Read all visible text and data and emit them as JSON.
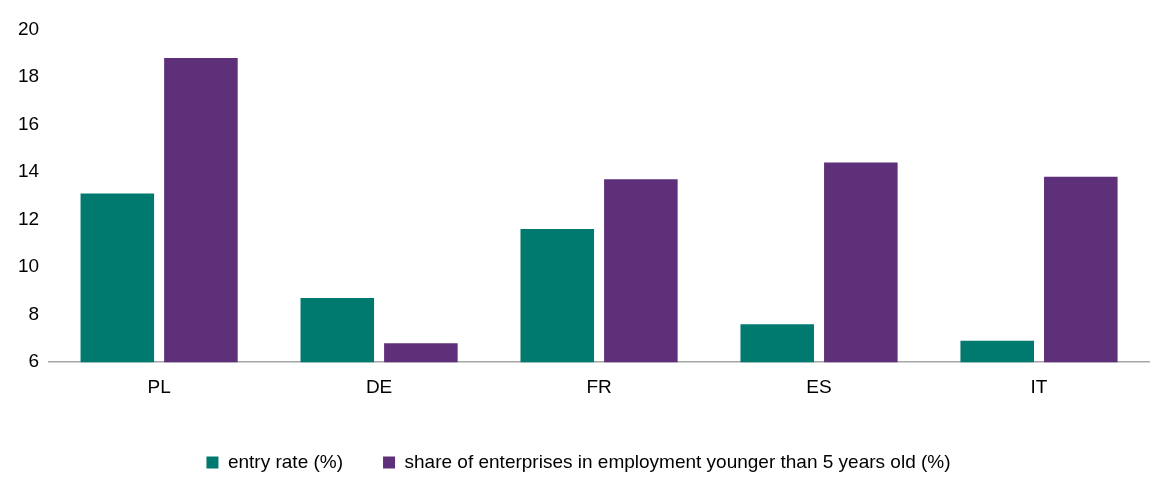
{
  "chart_data": {
    "type": "bar",
    "categories": [
      "PL",
      "DE",
      "FR",
      "ES",
      "IT"
    ],
    "series": [
      {
        "name": "entry rate (%)",
        "color": "#007a6e",
        "values": [
          13.1,
          8.7,
          11.6,
          7.6,
          6.9
        ]
      },
      {
        "name": "share of enterprises in employment younger than 5 years old (%)",
        "color": "#5e3079",
        "values": [
          18.8,
          6.8,
          13.7,
          14.4,
          13.8
        ]
      }
    ],
    "ylim": [
      6,
      20
    ],
    "yticks": [
      6,
      8,
      10,
      12,
      14,
      16,
      18,
      20
    ],
    "grid": false,
    "legend": "bottom"
  }
}
